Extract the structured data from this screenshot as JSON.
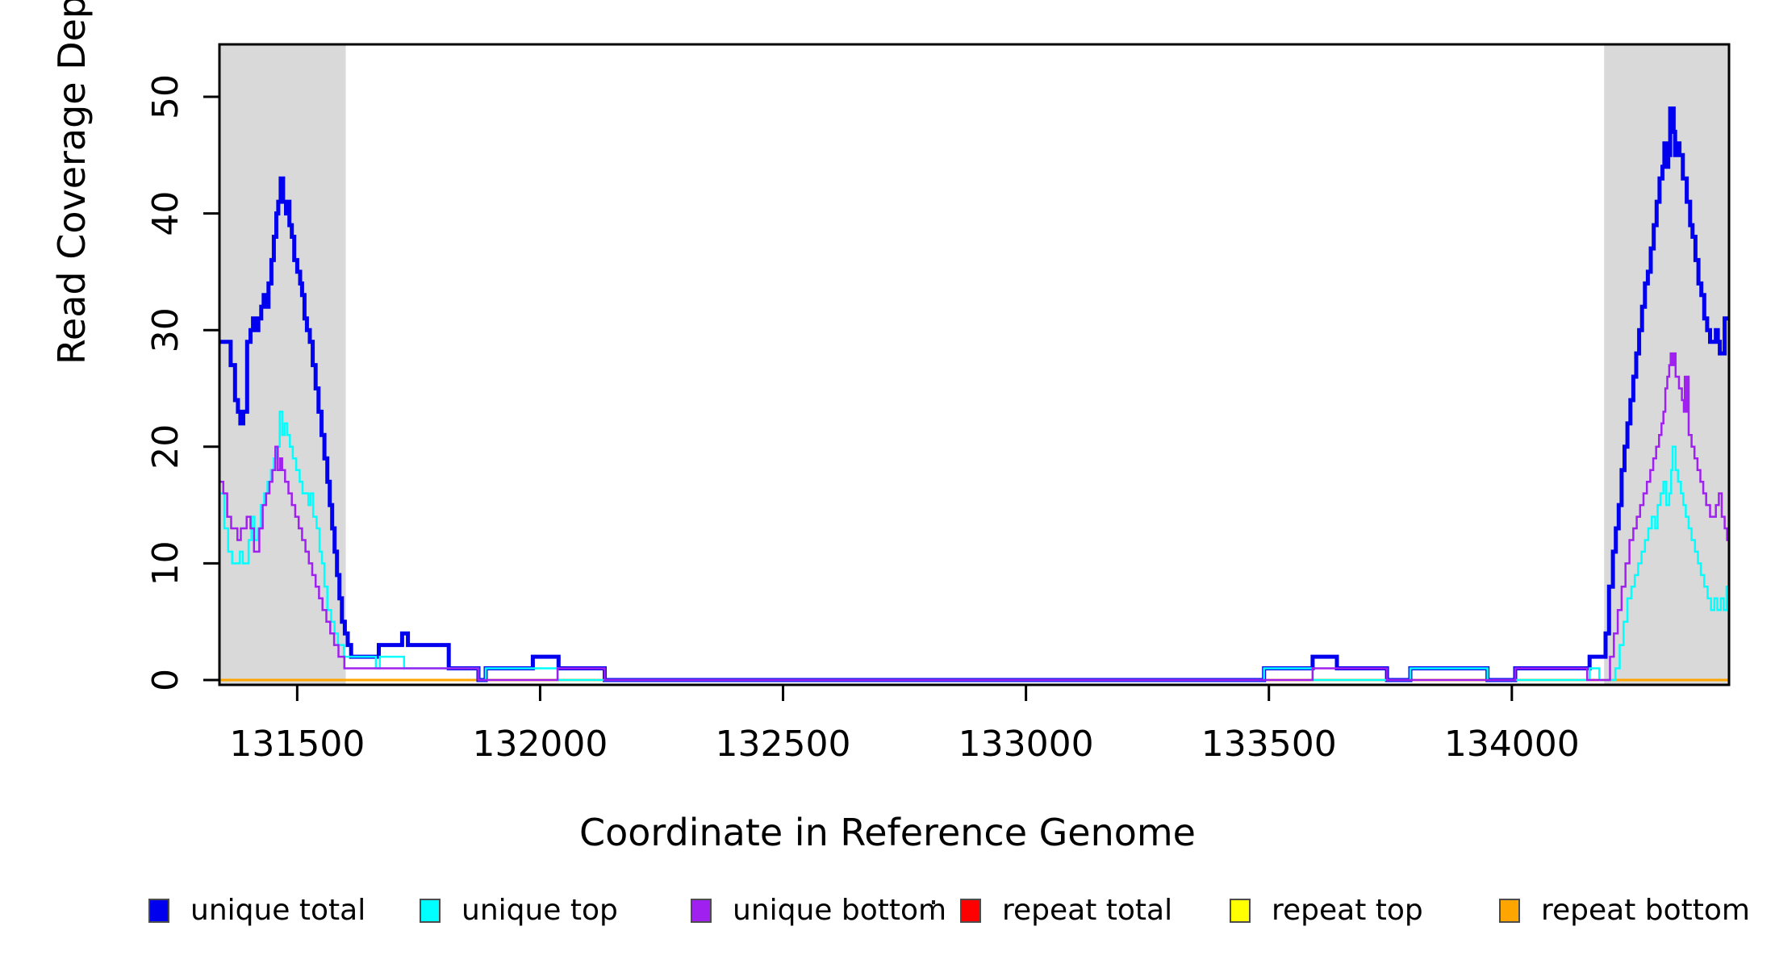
{
  "y_axis_title": "Read Coverage Depth",
  "x_axis_title": "Coordinate in Reference Genome",
  "colors": {
    "background": "#ffffff",
    "shaded_region": "#d9d9d9",
    "plot_border": "#000000",
    "unique_total": "#0000ee",
    "unique_top": "#00ffff",
    "unique_bottom": "#a020f0",
    "repeat_total": "#ff0000",
    "repeat_top": "#ffff00",
    "repeat_bottom": "#ffa500"
  },
  "legend": [
    {
      "label": "unique total",
      "color": "#0000ee"
    },
    {
      "label": "unique top",
      "color": "#00ffff"
    },
    {
      "label": "unique bottom",
      "color": "#a020f0"
    },
    {
      "label": "repeat total",
      "color": "#ff0000"
    },
    {
      "label": "repeat top",
      "color": "#ffff00"
    },
    {
      "label": "repeat bottom",
      "color": "#ffa500"
    }
  ],
  "chart_data": {
    "type": "line",
    "step": true,
    "title": "",
    "xlabel": "Coordinate in Reference Genome",
    "ylabel": "Read Coverage Depth",
    "xlim": [
      131340,
      134447
    ],
    "ylim": [
      0,
      54.5
    ],
    "x_ticks": [
      131500,
      132000,
      132500,
      133000,
      133500,
      134000
    ],
    "y_ticks": [
      0,
      10,
      20,
      30,
      40,
      50
    ],
    "grid": false,
    "legend_position": "bottom",
    "shaded_regions": [
      {
        "x0": 131340,
        "x1": 131600
      },
      {
        "x0": 134190,
        "x1": 134447
      }
    ],
    "series": [
      {
        "name": "repeat total",
        "color": "#ff0000",
        "width": 3,
        "points": [
          [
            131340,
            0
          ],
          [
            134447,
            0
          ]
        ]
      },
      {
        "name": "repeat top",
        "color": "#ffff00",
        "width": 3,
        "points": [
          [
            131340,
            0
          ],
          [
            134447,
            0
          ]
        ]
      },
      {
        "name": "repeat bottom",
        "color": "#ffa500",
        "width": 3,
        "points": [
          [
            131340,
            0
          ],
          [
            134447,
            0
          ]
        ]
      },
      {
        "name": "unique total",
        "color": "#0000ee",
        "width": 5,
        "points": [
          [
            131340,
            29
          ],
          [
            131363,
            27
          ],
          [
            131372,
            24
          ],
          [
            131378,
            23
          ],
          [
            131383,
            22
          ],
          [
            131389,
            23
          ],
          [
            131397,
            29
          ],
          [
            131404,
            30
          ],
          [
            131409,
            31
          ],
          [
            131414,
            30
          ],
          [
            131420,
            31
          ],
          [
            131426,
            32
          ],
          [
            131431,
            33
          ],
          [
            131436,
            32
          ],
          [
            131441,
            34
          ],
          [
            131447,
            36
          ],
          [
            131452,
            38
          ],
          [
            131457,
            40
          ],
          [
            131461,
            41
          ],
          [
            131466,
            43
          ],
          [
            131471,
            41
          ],
          [
            131477,
            40
          ],
          [
            131480,
            41
          ],
          [
            131484,
            39
          ],
          [
            131489,
            38
          ],
          [
            131494,
            36
          ],
          [
            131500,
            35
          ],
          [
            131506,
            34
          ],
          [
            131510,
            33
          ],
          [
            131515,
            31
          ],
          [
            131520,
            30
          ],
          [
            131526,
            29
          ],
          [
            131532,
            27
          ],
          [
            131538,
            25
          ],
          [
            131544,
            23
          ],
          [
            131550,
            21
          ],
          [
            131556,
            19
          ],
          [
            131562,
            17
          ],
          [
            131567,
            15
          ],
          [
            131572,
            13
          ],
          [
            131577,
            11
          ],
          [
            131582,
            9
          ],
          [
            131587,
            7
          ],
          [
            131592,
            5
          ],
          [
            131598,
            4
          ],
          [
            131604,
            3
          ],
          [
            131611,
            2
          ],
          [
            131668,
            3
          ],
          [
            131716,
            4
          ],
          [
            131728,
            3
          ],
          [
            131812,
            1
          ],
          [
            131873,
            0
          ],
          [
            131888,
            1
          ],
          [
            131985,
            2
          ],
          [
            132038,
            1
          ],
          [
            132133,
            0
          ],
          [
            133490,
            1
          ],
          [
            133590,
            2
          ],
          [
            133640,
            1
          ],
          [
            133743,
            0
          ],
          [
            133791,
            1
          ],
          [
            133950,
            0
          ],
          [
            134007,
            1
          ],
          [
            134160,
            2
          ],
          [
            134193,
            4
          ],
          [
            134200,
            8
          ],
          [
            134208,
            11
          ],
          [
            134214,
            13
          ],
          [
            134220,
            15
          ],
          [
            134226,
            18
          ],
          [
            134232,
            20
          ],
          [
            134238,
            22
          ],
          [
            134244,
            24
          ],
          [
            134250,
            26
          ],
          [
            134256,
            28
          ],
          [
            134262,
            30
          ],
          [
            134268,
            32
          ],
          [
            134274,
            34
          ],
          [
            134280,
            35
          ],
          [
            134286,
            37
          ],
          [
            134292,
            39
          ],
          [
            134298,
            41
          ],
          [
            134304,
            43
          ],
          [
            134310,
            44
          ],
          [
            134314,
            46
          ],
          [
            134318,
            44
          ],
          [
            134322,
            45
          ],
          [
            134326,
            49
          ],
          [
            134333,
            47
          ],
          [
            134336,
            45
          ],
          [
            134340,
            46
          ],
          [
            134345,
            45
          ],
          [
            134352,
            43
          ],
          [
            134360,
            41
          ],
          [
            134367,
            39
          ],
          [
            134372,
            38
          ],
          [
            134378,
            36
          ],
          [
            134384,
            34
          ],
          [
            134390,
            33
          ],
          [
            134396,
            31
          ],
          [
            134402,
            30
          ],
          [
            134408,
            29
          ],
          [
            134420,
            30
          ],
          [
            134424,
            29
          ],
          [
            134428,
            28
          ],
          [
            134438,
            31
          ],
          [
            134447,
            31
          ]
        ]
      },
      {
        "name": "unique top",
        "color": "#00ffff",
        "width": 2.5,
        "points": [
          [
            131340,
            16
          ],
          [
            131350,
            13
          ],
          [
            131358,
            11
          ],
          [
            131366,
            10
          ],
          [
            131382,
            11
          ],
          [
            131388,
            10
          ],
          [
            131400,
            12
          ],
          [
            131406,
            14
          ],
          [
            131412,
            12
          ],
          [
            131419,
            13
          ],
          [
            131425,
            15
          ],
          [
            131432,
            16
          ],
          [
            131439,
            17
          ],
          [
            131446,
            18
          ],
          [
            131452,
            19
          ],
          [
            131458,
            20
          ],
          [
            131464,
            23
          ],
          [
            131469,
            21
          ],
          [
            131474,
            22
          ],
          [
            131479,
            21
          ],
          [
            131485,
            20
          ],
          [
            131491,
            19
          ],
          [
            131498,
            18
          ],
          [
            131505,
            17
          ],
          [
            131511,
            16
          ],
          [
            131523,
            15
          ],
          [
            131528,
            16
          ],
          [
            131533,
            14
          ],
          [
            131540,
            13
          ],
          [
            131546,
            11
          ],
          [
            131551,
            10
          ],
          [
            131556,
            8
          ],
          [
            131562,
            6
          ],
          [
            131570,
            5
          ],
          [
            131577,
            4
          ],
          [
            131584,
            3
          ],
          [
            131596,
            2
          ],
          [
            131662,
            1
          ],
          [
            131670,
            2
          ],
          [
            131720,
            1
          ],
          [
            131873,
            0
          ],
          [
            131888,
            1
          ],
          [
            132036,
            0
          ],
          [
            133490,
            1
          ],
          [
            133590,
            0
          ],
          [
            133791,
            1
          ],
          [
            133950,
            0
          ],
          [
            134160,
            1
          ],
          [
            134180,
            0
          ],
          [
            134213,
            1
          ],
          [
            134222,
            3
          ],
          [
            134230,
            5
          ],
          [
            134238,
            7
          ],
          [
            134246,
            8
          ],
          [
            134253,
            9
          ],
          [
            134260,
            10
          ],
          [
            134267,
            11
          ],
          [
            134274,
            12
          ],
          [
            134281,
            13
          ],
          [
            134288,
            14
          ],
          [
            134295,
            13
          ],
          [
            134300,
            15
          ],
          [
            134306,
            16
          ],
          [
            134312,
            17
          ],
          [
            134318,
            15
          ],
          [
            134324,
            16
          ],
          [
            134328,
            18
          ],
          [
            134331,
            20
          ],
          [
            134337,
            18
          ],
          [
            134342,
            17
          ],
          [
            134348,
            16
          ],
          [
            134353,
            15
          ],
          [
            134358,
            14
          ],
          [
            134364,
            13
          ],
          [
            134370,
            12
          ],
          [
            134377,
            11
          ],
          [
            134383,
            10
          ],
          [
            134389,
            9
          ],
          [
            134396,
            8
          ],
          [
            134403,
            7
          ],
          [
            134410,
            6
          ],
          [
            134417,
            7
          ],
          [
            134423,
            6
          ],
          [
            134430,
            7
          ],
          [
            134436,
            6
          ],
          [
            134442,
            8
          ],
          [
            134447,
            8
          ]
        ]
      },
      {
        "name": "unique bottom",
        "color": "#a020f0",
        "width": 2.5,
        "points": [
          [
            131340,
            17
          ],
          [
            131348,
            16
          ],
          [
            131356,
            14
          ],
          [
            131364,
            13
          ],
          [
            131377,
            12
          ],
          [
            131384,
            13
          ],
          [
            131396,
            14
          ],
          [
            131404,
            13
          ],
          [
            131411,
            11
          ],
          [
            131422,
            13
          ],
          [
            131429,
            15
          ],
          [
            131436,
            16
          ],
          [
            131443,
            17
          ],
          [
            131449,
            18
          ],
          [
            131455,
            20
          ],
          [
            131460,
            18
          ],
          [
            131465,
            19
          ],
          [
            131469,
            18
          ],
          [
            131475,
            17
          ],
          [
            131482,
            16
          ],
          [
            131489,
            15
          ],
          [
            131496,
            14
          ],
          [
            131503,
            13
          ],
          [
            131510,
            12
          ],
          [
            131517,
            11
          ],
          [
            131524,
            10
          ],
          [
            131531,
            9
          ],
          [
            131538,
            8
          ],
          [
            131545,
            7
          ],
          [
            131552,
            6
          ],
          [
            131560,
            5
          ],
          [
            131568,
            4
          ],
          [
            131576,
            3
          ],
          [
            131585,
            2
          ],
          [
            131597,
            1
          ],
          [
            131873,
            0
          ],
          [
            132036,
            1
          ],
          [
            132133,
            0
          ],
          [
            133590,
            1
          ],
          [
            133743,
            0
          ],
          [
            134007,
            1
          ],
          [
            134155,
            0
          ],
          [
            134202,
            2
          ],
          [
            134210,
            4
          ],
          [
            134218,
            6
          ],
          [
            134226,
            8
          ],
          [
            134234,
            10
          ],
          [
            134242,
            12
          ],
          [
            134250,
            13
          ],
          [
            134257,
            14
          ],
          [
            134264,
            15
          ],
          [
            134271,
            16
          ],
          [
            134278,
            17
          ],
          [
            134285,
            18
          ],
          [
            134291,
            19
          ],
          [
            134297,
            20
          ],
          [
            134303,
            21
          ],
          [
            134308,
            22
          ],
          [
            134312,
            23
          ],
          [
            134316,
            25
          ],
          [
            134320,
            26
          ],
          [
            134324,
            27
          ],
          [
            134327,
            28
          ],
          [
            134331,
            27
          ],
          [
            134334,
            28
          ],
          [
            134337,
            26
          ],
          [
            134344,
            25
          ],
          [
            134350,
            24
          ],
          [
            134354,
            23
          ],
          [
            134356,
            26
          ],
          [
            134359,
            23
          ],
          [
            134361,
            26
          ],
          [
            134364,
            21
          ],
          [
            134370,
            20
          ],
          [
            134376,
            19
          ],
          [
            134382,
            18
          ],
          [
            134388,
            17
          ],
          [
            134394,
            16
          ],
          [
            134400,
            15
          ],
          [
            134408,
            14
          ],
          [
            134420,
            15
          ],
          [
            134426,
            16
          ],
          [
            134432,
            14
          ],
          [
            134438,
            13
          ],
          [
            134443,
            12
          ],
          [
            134447,
            12
          ]
        ]
      }
    ]
  }
}
